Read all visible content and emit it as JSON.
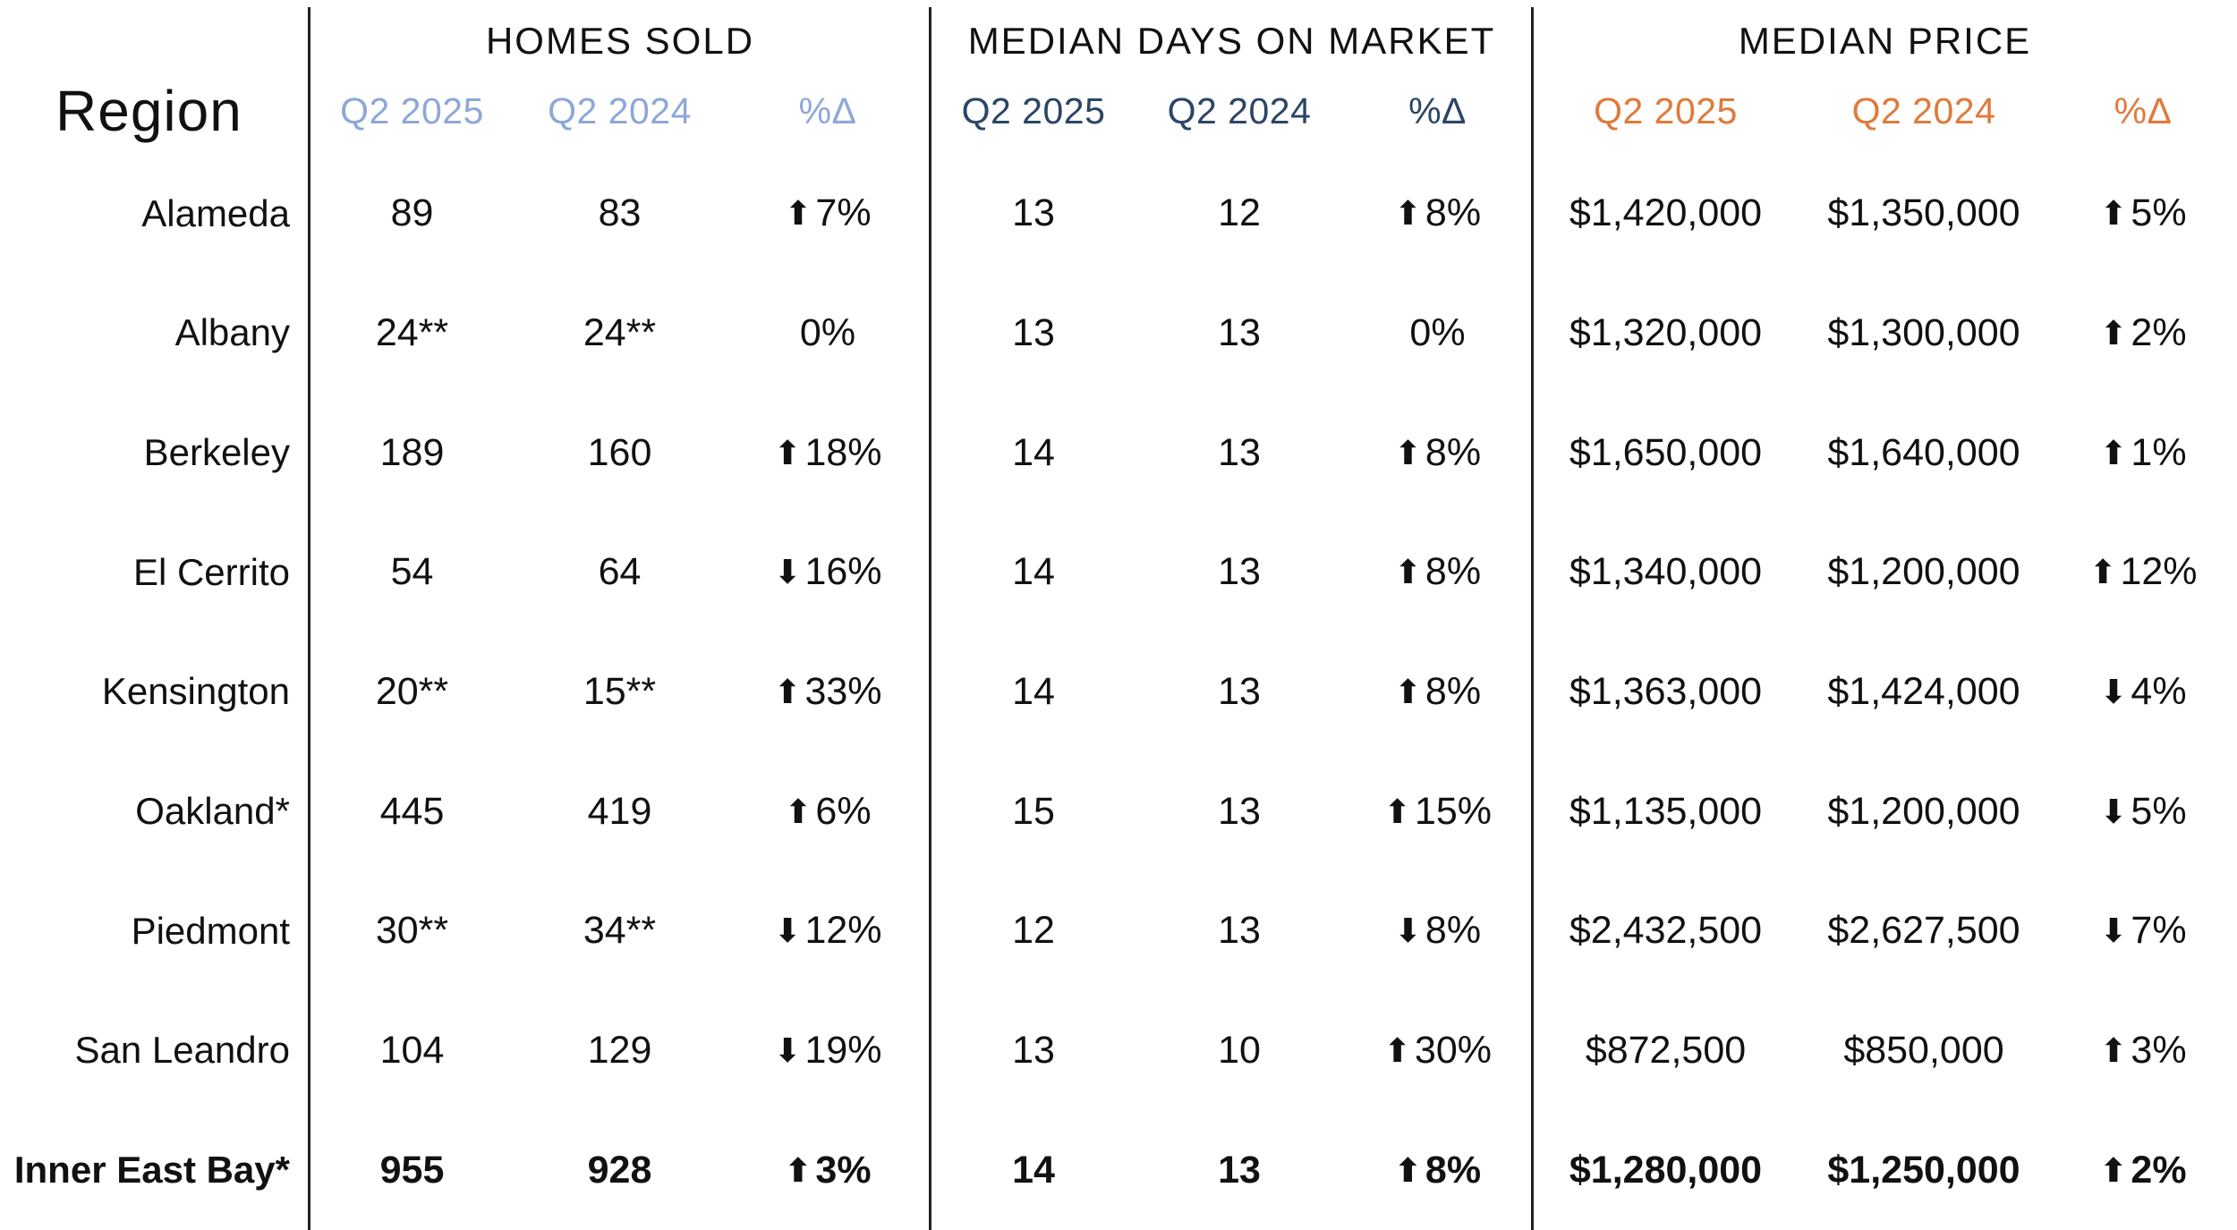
{
  "colors": {
    "background": "#ffffff",
    "text": "#111111",
    "divider": "#222222",
    "homes_header": "#8da8d8",
    "days_header": "#2b4566",
    "price_header": "#e07a3b"
  },
  "icons": {
    "up_arrow": "⬆",
    "down_arrow": "⬇"
  },
  "chart_data": {
    "type": "table",
    "region_header": "Region",
    "sections": [
      {
        "title": "HOMES SOLD",
        "columns": [
          "Q2 2025",
          "Q2 2024",
          "%Δ"
        ],
        "header_color": "#8da8d8"
      },
      {
        "title": "MEDIAN DAYS ON MARKET",
        "columns": [
          "Q2 2025",
          "Q2 2024",
          "%Δ"
        ],
        "header_color": "#2b4566"
      },
      {
        "title": "MEDIAN PRICE",
        "columns": [
          "Q2 2025",
          "Q2 2024",
          "%Δ"
        ],
        "header_color": "#e07a3b"
      }
    ],
    "rows": [
      {
        "region": "Alameda",
        "bold": false,
        "homes_2025": "89",
        "homes_2024": "83",
        "homes_arrow": "⬆",
        "homes_pct": "7%",
        "days_2025": "13",
        "days_2024": "12",
        "days_arrow": "⬆",
        "days_pct": "8%",
        "price_2025": "$1,420,000",
        "price_2024": "$1,350,000",
        "price_arrow": "⬆",
        "price_pct": "5%"
      },
      {
        "region": "Albany",
        "bold": false,
        "homes_2025": "24**",
        "homes_2024": "24**",
        "homes_arrow": "",
        "homes_pct": "0%",
        "days_2025": "13",
        "days_2024": "13",
        "days_arrow": "",
        "days_pct": "0%",
        "price_2025": "$1,320,000",
        "price_2024": "$1,300,000",
        "price_arrow": "⬆",
        "price_pct": "2%"
      },
      {
        "region": "Berkeley",
        "bold": false,
        "homes_2025": "189",
        "homes_2024": "160",
        "homes_arrow": "⬆",
        "homes_pct": "18%",
        "days_2025": "14",
        "days_2024": "13",
        "days_arrow": "⬆",
        "days_pct": "8%",
        "price_2025": "$1,650,000",
        "price_2024": "$1,640,000",
        "price_arrow": "⬆",
        "price_pct": "1%"
      },
      {
        "region": "El Cerrito",
        "bold": false,
        "homes_2025": "54",
        "homes_2024": "64",
        "homes_arrow": "⬇",
        "homes_pct": "16%",
        "days_2025": "14",
        "days_2024": "13",
        "days_arrow": "⬆",
        "days_pct": "8%",
        "price_2025": "$1,340,000",
        "price_2024": "$1,200,000",
        "price_arrow": "⬆",
        "price_pct": "12%"
      },
      {
        "region": "Kensington",
        "bold": false,
        "homes_2025": "20**",
        "homes_2024": "15**",
        "homes_arrow": "⬆",
        "homes_pct": "33%",
        "days_2025": "14",
        "days_2024": "13",
        "days_arrow": "⬆",
        "days_pct": "8%",
        "price_2025": "$1,363,000",
        "price_2024": "$1,424,000",
        "price_arrow": "⬇",
        "price_pct": "4%"
      },
      {
        "region": "Oakland*",
        "bold": false,
        "homes_2025": "445",
        "homes_2024": "419",
        "homes_arrow": "⬆",
        "homes_pct": "6%",
        "days_2025": "15",
        "days_2024": "13",
        "days_arrow": "⬆",
        "days_pct": "15%",
        "price_2025": "$1,135,000",
        "price_2024": "$1,200,000",
        "price_arrow": "⬇",
        "price_pct": "5%"
      },
      {
        "region": "Piedmont",
        "bold": false,
        "homes_2025": "30**",
        "homes_2024": "34**",
        "homes_arrow": "⬇",
        "homes_pct": "12%",
        "days_2025": "12",
        "days_2024": "13",
        "days_arrow": "⬇",
        "days_pct": "8%",
        "price_2025": "$2,432,500",
        "price_2024": "$2,627,500",
        "price_arrow": "⬇",
        "price_pct": "7%"
      },
      {
        "region": "San Leandro",
        "bold": false,
        "homes_2025": "104",
        "homes_2024": "129",
        "homes_arrow": "⬇",
        "homes_pct": "19%",
        "days_2025": "13",
        "days_2024": "10",
        "days_arrow": "⬆",
        "days_pct": "30%",
        "price_2025": "$872,500",
        "price_2024": "$850,000",
        "price_arrow": "⬆",
        "price_pct": "3%"
      },
      {
        "region": "Inner East Bay*",
        "bold": true,
        "homes_2025": "955",
        "homes_2024": "928",
        "homes_arrow": "⬆",
        "homes_pct": "3%",
        "days_2025": "14",
        "days_2024": "13",
        "days_arrow": "⬆",
        "days_pct": "8%",
        "price_2025": "$1,280,000",
        "price_2024": "$1,250,000",
        "price_arrow": "⬆",
        "price_pct": "2%"
      }
    ]
  }
}
